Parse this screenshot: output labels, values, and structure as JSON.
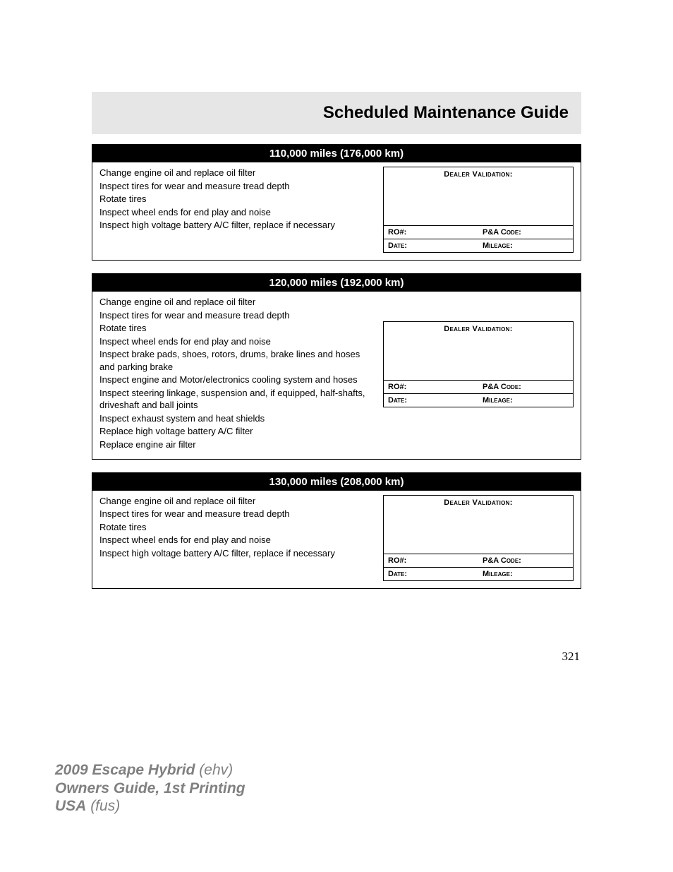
{
  "colors": {
    "page_bg": "#ffffff",
    "band_bg": "#e6e6e6",
    "title_bg": "#000000",
    "title_fg": "#ffffff",
    "text": "#000000",
    "footer": "#808080",
    "border": "#000000"
  },
  "header": {
    "title": "Scheduled Maintenance Guide"
  },
  "page_number": "321",
  "footer": {
    "line1a": "2009 Escape Hybrid",
    "line1b": "(ehv)",
    "line2": "Owners Guide, 1st Printing",
    "line3a": "USA",
    "line3b": "(fus)"
  },
  "validation_labels": {
    "header": "Dealer Validation:",
    "ro": "RO#:",
    "pna": "P&A Code:",
    "date": "Date:",
    "mileage": "Mileage:"
  },
  "blocks": [
    {
      "title": "110,000 miles (176,000 km)",
      "val_offset_top": 0,
      "val_spacer_h": 64,
      "tasks": [
        "Change engine oil and replace oil filter",
        "Inspect tires for wear and measure tread depth",
        "Rotate tires",
        "Inspect wheel ends for end play and noise",
        "Inspect high voltage battery A/C filter, replace if necessary"
      ]
    },
    {
      "title": "120,000 miles (192,000 km)",
      "val_offset_top": 36,
      "val_spacer_h": 64,
      "tasks": [
        "Change engine oil and replace oil filter",
        "Inspect tires for wear and measure tread depth",
        "Rotate tires",
        "Inspect wheel ends for end play and noise",
        "Inspect brake pads, shoes, rotors, drums, brake lines and hoses and parking brake",
        "Inspect engine and Motor/electronics cooling system and hoses",
        "Inspect steering linkage, suspension and, if equipped, half-shafts, driveshaft and ball joints",
        "Inspect exhaust system and heat shields",
        "Replace high voltage battery A/C filter",
        "Replace engine air filter"
      ]
    },
    {
      "title": "130,000 miles (208,000 km)",
      "val_offset_top": 0,
      "val_spacer_h": 64,
      "tasks": [
        "Change engine oil and replace oil filter",
        "Inspect tires for wear and measure tread depth",
        "Rotate tires",
        "Inspect wheel ends for end play and noise",
        "Inspect high voltage battery A/C filter, replace if necessary"
      ]
    }
  ]
}
